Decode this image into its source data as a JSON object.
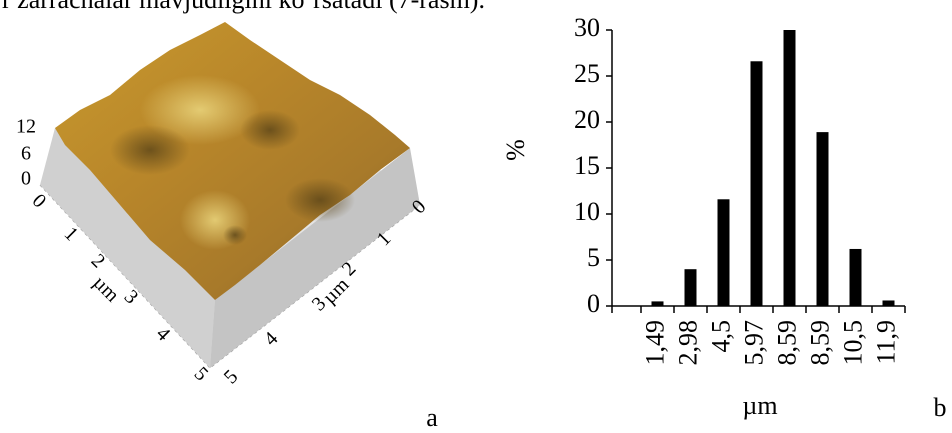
{
  "caption_text": "r zarrachalar mavjudligini ko‘rsatadi (7-rasm).",
  "afm_image": {
    "z_ticks": [
      12,
      6,
      0
    ],
    "x_ticks": [
      0,
      1,
      2,
      3,
      4,
      5
    ],
    "x_label": "µm",
    "y_ticks": [
      0,
      1,
      2,
      3,
      4,
      5
    ],
    "y_label": "µm",
    "panel_label": "a"
  },
  "chart_data": {
    "type": "bar",
    "categories": [
      "1,49",
      "2,98",
      "4,5",
      "5,97",
      "8,59",
      "8,59",
      "10,5",
      "11,9"
    ],
    "values": [
      0.5,
      4,
      11.6,
      26.6,
      30,
      18.9,
      6.2,
      0.6
    ],
    "color": "#000000",
    "ylim": [
      0,
      30
    ],
    "yticks": [
      0,
      5,
      10,
      15,
      20,
      25,
      30
    ],
    "ylabel": "%",
    "xlabel": "µm",
    "panel_label": "b"
  }
}
